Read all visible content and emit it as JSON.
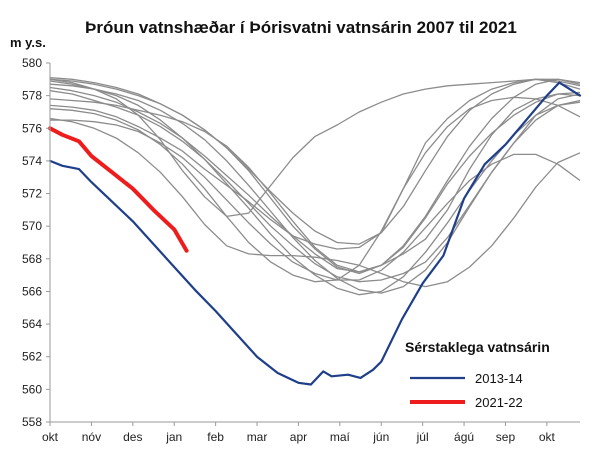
{
  "chart_data": {
    "type": "line",
    "title": "Þróun vatnshæðar í Þórisvatni vatnsárin 2007 til 2021",
    "ylabel": "m y.s.",
    "xlabel": "",
    "x": [
      "okt",
      "nóv",
      "des",
      "jan",
      "feb",
      "mar",
      "apr",
      "maí",
      "jún",
      "júl",
      "ágú",
      "sep",
      "okt"
    ],
    "ylim": [
      558,
      580
    ],
    "yticks": [
      558,
      560,
      562,
      564,
      566,
      568,
      570,
      572,
      574,
      576,
      578,
      580
    ],
    "grid": false,
    "legend": {
      "title": "Sérstaklega vatnsárin",
      "position": "bottom-right"
    },
    "highlight_series": [
      {
        "name": "2013-14",
        "color": "#1f3f8a",
        "x": [
          0,
          0.3,
          0.7,
          1,
          1.5,
          2,
          2.5,
          3,
          3.5,
          4,
          4.5,
          5,
          5.5,
          6,
          6.3,
          6.6,
          6.8,
          7.2,
          7.5,
          7.8,
          8,
          8.5,
          9,
          9.5,
          10,
          10.5,
          11,
          11.5,
          12,
          12.3,
          12.8
        ],
        "values": [
          574,
          573.7,
          573.5,
          572.7,
          571.5,
          570.3,
          568.9,
          567.5,
          566.1,
          564.8,
          563.4,
          562,
          561,
          560.4,
          560.3,
          561.1,
          560.8,
          560.9,
          560.7,
          561.2,
          561.7,
          564.3,
          566.5,
          568.2,
          571.7,
          573.8,
          575,
          576.5,
          578,
          578.8,
          578
        ]
      },
      {
        "name": "2021-22",
        "color": "#ee1c1c",
        "x": [
          0,
          0.3,
          0.7,
          1,
          1.5,
          2,
          2.5,
          3,
          3.3
        ],
        "values": [
          576,
          575.6,
          575.2,
          574.3,
          573.3,
          572.3,
          571,
          569.8,
          568.5
        ]
      }
    ],
    "background_series": [
      {
        "values": [
          579,
          578.8,
          578.4,
          577.8,
          576.8,
          575.3,
          573.4,
          571.8,
          570.6,
          570.8,
          572.5,
          574.2,
          575.5,
          576.2,
          577,
          577.6,
          578.1,
          578.4,
          578.6,
          578.7,
          578.8,
          578.9,
          579,
          578.9,
          578.6
        ]
      },
      {
        "values": [
          577.4,
          577.3,
          577.1,
          576.7,
          576.1,
          575.4,
          574.6,
          573.5,
          572.5,
          571.5,
          570.4,
          569.4,
          568.9,
          568.6,
          568.7,
          569.6,
          572.3,
          575.1,
          576.6,
          577.7,
          578.4,
          578.8,
          579,
          578.8,
          578.4
        ]
      },
      {
        "values": [
          578.5,
          578.3,
          578,
          577.6,
          577,
          576.3,
          575.4,
          574.3,
          573.1,
          571.9,
          570.6,
          569.4,
          568.3,
          567.4,
          567.2,
          567.6,
          568.3,
          569.2,
          571,
          573.5,
          575.6,
          577.1,
          577.8,
          578.1,
          578
        ]
      },
      {
        "values": [
          578.3,
          578.1,
          577.7,
          577.3,
          576.8,
          576.1,
          575.2,
          574.1,
          572.8,
          571.4,
          570,
          568.8,
          567.7,
          566.9,
          566.6,
          566.7,
          567.1,
          567.8,
          569.3,
          571.3,
          573.3,
          575.1,
          576.8,
          577.8,
          578.1
        ]
      },
      {
        "values": [
          578.9,
          578.7,
          578.4,
          578,
          577.4,
          576.5,
          575.4,
          574.1,
          572.6,
          571.1,
          569.5,
          568.1,
          567,
          566.2,
          565.8,
          566,
          566.9,
          568.4,
          570.2,
          572.2,
          574,
          575.6,
          576.8,
          577.4,
          577.6
        ]
      },
      {
        "values": [
          577.8,
          577.7,
          577.6,
          577.4,
          577.1,
          576.8,
          576.4,
          575.8,
          574.9,
          573.6,
          572,
          570.3,
          568.7,
          567.6,
          567.2,
          567.6,
          568.7,
          570.5,
          572.6,
          574.3,
          575.7,
          576.8,
          577.6,
          578.1,
          578.2
        ]
      },
      {
        "values": [
          579,
          578.9,
          578.7,
          578.4,
          578,
          577.5,
          576.8,
          575.9,
          574.8,
          573.4,
          571.7,
          570,
          568.6,
          567.5,
          567.1,
          567.6,
          568.8,
          570.6,
          572.8,
          574.9,
          576.6,
          577.9,
          578.7,
          579,
          578.8
        ]
      },
      {
        "values": [
          577.2,
          577.1,
          576.9,
          576.5,
          575.9,
          575,
          573.8,
          572.3,
          570.6,
          569,
          567.8,
          567,
          566.6,
          566.7,
          567.6,
          569.7,
          572.3,
          574.5,
          576.1,
          577.2,
          577.7,
          577.9,
          577.8,
          577.4,
          576.7
        ]
      },
      {
        "values": [
          576.5,
          576.5,
          576.4,
          576.2,
          575.8,
          575.1,
          574.2,
          573,
          571.6,
          570.2,
          568.9,
          567.8,
          567.1,
          566.7,
          566.7,
          567.3,
          568.4,
          569.9,
          571.4,
          572.8,
          573.8,
          574.4,
          574.4,
          573.8,
          572.8
        ]
      },
      {
        "values": [
          576.6,
          576.4,
          576,
          575.4,
          574.5,
          573.3,
          571.8,
          570.1,
          568.8,
          568.3,
          568.2,
          568.2,
          568.1,
          567.9,
          567.6,
          567.1,
          566.6,
          566.3,
          566.6,
          567.5,
          568.8,
          570.5,
          572.4,
          573.9,
          574.5
        ]
      },
      {
        "values": [
          578.7,
          578.6,
          578.4,
          578.1,
          577.7,
          577.1,
          576.3,
          575.3,
          574,
          572.5,
          570.9,
          569.3,
          567.9,
          566.8,
          566.1,
          565.9,
          566.3,
          567.3,
          569,
          571.2,
          573.3,
          575.1,
          576.5,
          577.4,
          577.7
        ]
      },
      {
        "values": [
          579.1,
          579,
          578.8,
          578.5,
          578.1,
          577.5,
          576.8,
          575.9,
          574.8,
          573.5,
          572.1,
          570.8,
          569.7,
          569,
          568.9,
          569.6,
          571.2,
          573.4,
          575.5,
          577.1,
          578.1,
          578.7,
          579,
          579,
          578.7
        ]
      }
    ]
  }
}
